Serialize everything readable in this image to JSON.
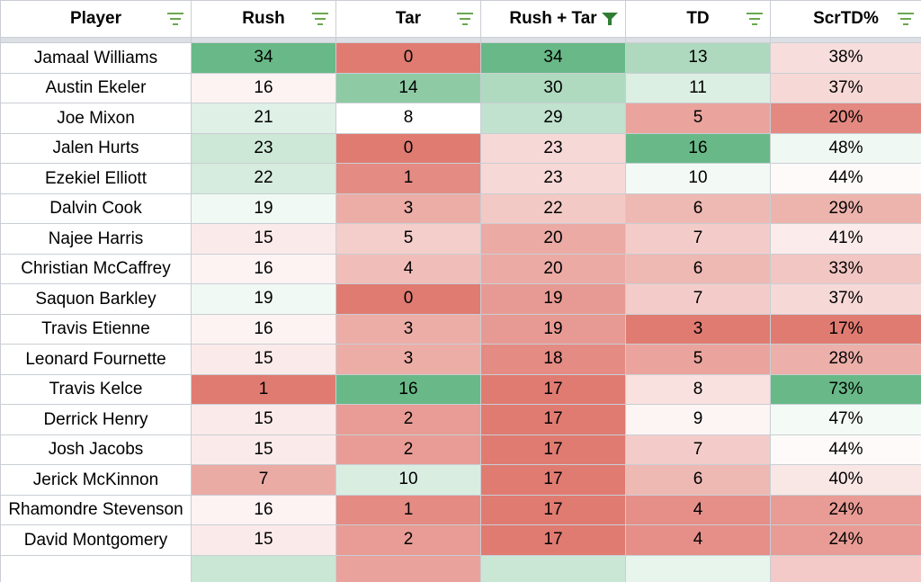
{
  "columns": [
    {
      "label": "Player",
      "filter": "inactive"
    },
    {
      "label": "Rush",
      "filter": "inactive"
    },
    {
      "label": "Tar",
      "filter": "inactive"
    },
    {
      "label": "Rush + Tar",
      "filter": "active"
    },
    {
      "label": "TD",
      "filter": "inactive"
    },
    {
      "label": "ScrTD%",
      "filter": "inactive"
    }
  ],
  "colors": {
    "green_strong": "#68b987",
    "red_strong": "#e07b72",
    "white": "#ffffff",
    "filter_icon": "#6aa84f",
    "filter_active": "#2e7d32"
  },
  "rows": [
    {
      "player": "Jamaal Williams",
      "rush": "34",
      "tar": "0",
      "rt": "34",
      "td": "13",
      "scr": "38%"
    },
    {
      "player": "Austin Ekeler",
      "rush": "16",
      "tar": "14",
      "rt": "30",
      "td": "11",
      "scr": "37%"
    },
    {
      "player": "Joe Mixon",
      "rush": "21",
      "tar": "8",
      "rt": "29",
      "td": "5",
      "scr": "20%"
    },
    {
      "player": "Jalen Hurts",
      "rush": "23",
      "tar": "0",
      "rt": "23",
      "td": "16",
      "scr": "48%"
    },
    {
      "player": "Ezekiel Elliott",
      "rush": "22",
      "tar": "1",
      "rt": "23",
      "td": "10",
      "scr": "44%"
    },
    {
      "player": "Dalvin Cook",
      "rush": "19",
      "tar": "3",
      "rt": "22",
      "td": "6",
      "scr": "29%"
    },
    {
      "player": "Najee Harris",
      "rush": "15",
      "tar": "5",
      "rt": "20",
      "td": "7",
      "scr": "41%"
    },
    {
      "player": "Christian McCaffrey",
      "rush": "16",
      "tar": "4",
      "rt": "20",
      "td": "6",
      "scr": "33%"
    },
    {
      "player": "Saquon Barkley",
      "rush": "19",
      "tar": "0",
      "rt": "19",
      "td": "7",
      "scr": "37%"
    },
    {
      "player": "Travis Etienne",
      "rush": "16",
      "tar": "3",
      "rt": "19",
      "td": "3",
      "scr": "17%"
    },
    {
      "player": "Leonard Fournette",
      "rush": "15",
      "tar": "3",
      "rt": "18",
      "td": "5",
      "scr": "28%"
    },
    {
      "player": "Travis Kelce",
      "rush": "1",
      "tar": "16",
      "rt": "17",
      "td": "8",
      "scr": "73%"
    },
    {
      "player": "Derrick Henry",
      "rush": "15",
      "tar": "2",
      "rt": "17",
      "td": "9",
      "scr": "47%"
    },
    {
      "player": "Josh Jacobs",
      "rush": "15",
      "tar": "2",
      "rt": "17",
      "td": "7",
      "scr": "44%"
    },
    {
      "player": "Jerick McKinnon",
      "rush": "7",
      "tar": "10",
      "rt": "17",
      "td": "6",
      "scr": "40%"
    },
    {
      "player": "Rhamondre Stevenson",
      "rush": "16",
      "tar": "1",
      "rt": "17",
      "td": "4",
      "scr": "24%"
    },
    {
      "player": "David Montgomery",
      "rush": "15",
      "tar": "2",
      "rt": "17",
      "td": "4",
      "scr": "24%"
    }
  ]
}
